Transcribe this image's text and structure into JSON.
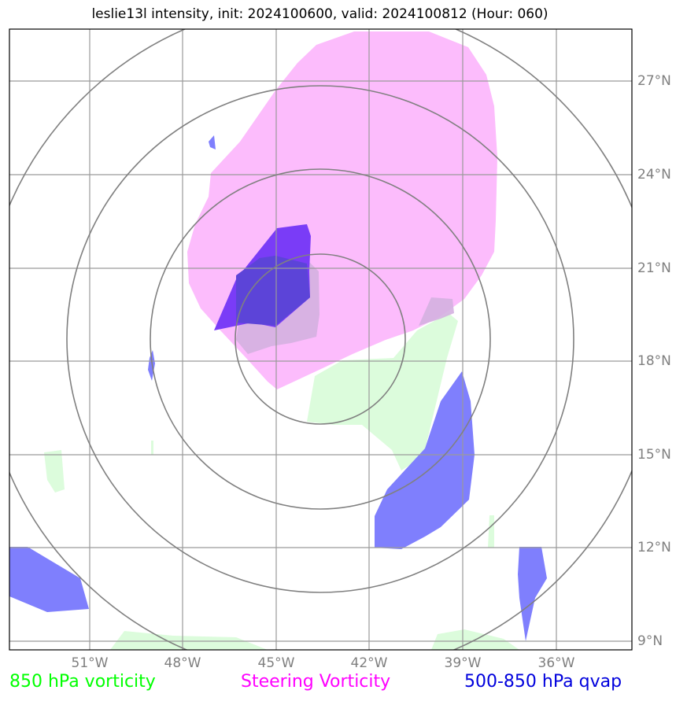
{
  "title": "leslie13l intensity, init: 2024100600, valid: 2024100812 (Hour: 060)",
  "map": {
    "lon_ticks": [
      "51°W",
      "48°W",
      "45°W",
      "42°W",
      "39°W",
      "36°W"
    ],
    "lat_ticks": [
      "27°N",
      "24°N",
      "21°N",
      "18°N",
      "15°N",
      "12°N",
      "9°N"
    ],
    "range_rings": 4,
    "colors": {
      "frame": "#000000",
      "grid": "#9a9a9a",
      "rings": "#808080",
      "vorticity_850": "#dcfcdc",
      "steering_vorticity": "#fcbcfc",
      "qvap": "#7f7ffd",
      "qvap_overlap": "#7a3cf7"
    }
  },
  "legend": [
    {
      "label": "850 hPa vorticity",
      "color": "#00ff00"
    },
    {
      "label": "Steering Vorticity",
      "color": "#ff00ff"
    },
    {
      "label": "500-850 hPa qvap",
      "color": "#0000dd"
    }
  ]
}
